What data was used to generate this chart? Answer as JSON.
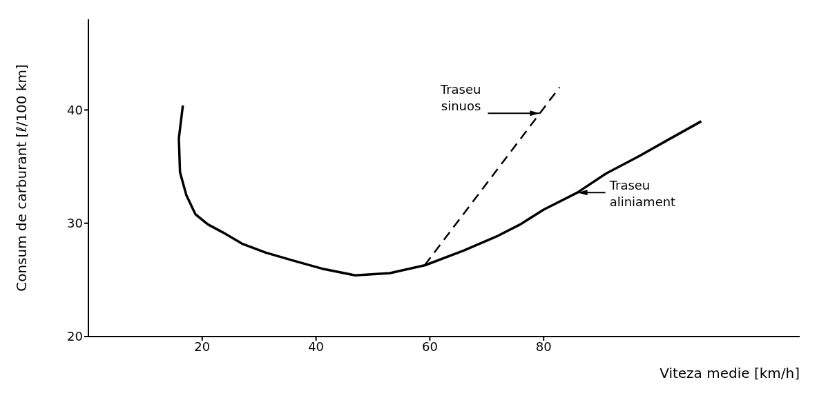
{
  "chart_data": {
    "type": "line",
    "xlabel": "Viteza medie [km/h]",
    "ylabel": "Consum de carburant [ℓ/100 km]",
    "xlim": [
      0,
      125
    ],
    "xticks": [
      20,
      40,
      60,
      80
    ],
    "ylim": [
      20,
      48
    ],
    "yticks": [
      20,
      30,
      40
    ],
    "grid": false,
    "legend": false,
    "marker": "none",
    "series": [
      {
        "color": "#000000",
        "line_style": "solid",
        "x": [
          16.6,
          15.9,
          16.1,
          17.2,
          18.8,
          21,
          23.6,
          27,
          31.2,
          36,
          41,
          46.9,
          53,
          59.2,
          66,
          72,
          75.9,
          80,
          85.9,
          91,
          96.7,
          102,
          107.7
        ],
        "values": [
          40.4,
          37.5,
          34.5,
          32.5,
          30.8,
          29.9,
          29.2,
          28.2,
          27.4,
          26.7,
          26.0,
          25.4,
          25.6,
          26.3,
          27.6,
          28.9,
          29.9,
          31.2,
          32.7,
          34.4,
          35.9,
          37.4,
          39.0
        ]
      },
      {
        "color": "#000000",
        "line_style": "dashed",
        "x": [
          59.1,
          82.8
        ],
        "values": [
          26.3,
          42.0
        ]
      }
    ],
    "annotations": [
      {
        "text": "Traseu sinuos",
        "x": 79.3,
        "y": 39.7
      },
      {
        "text": "Traseu aliniament",
        "x": 86,
        "y": 32.7
      }
    ]
  }
}
